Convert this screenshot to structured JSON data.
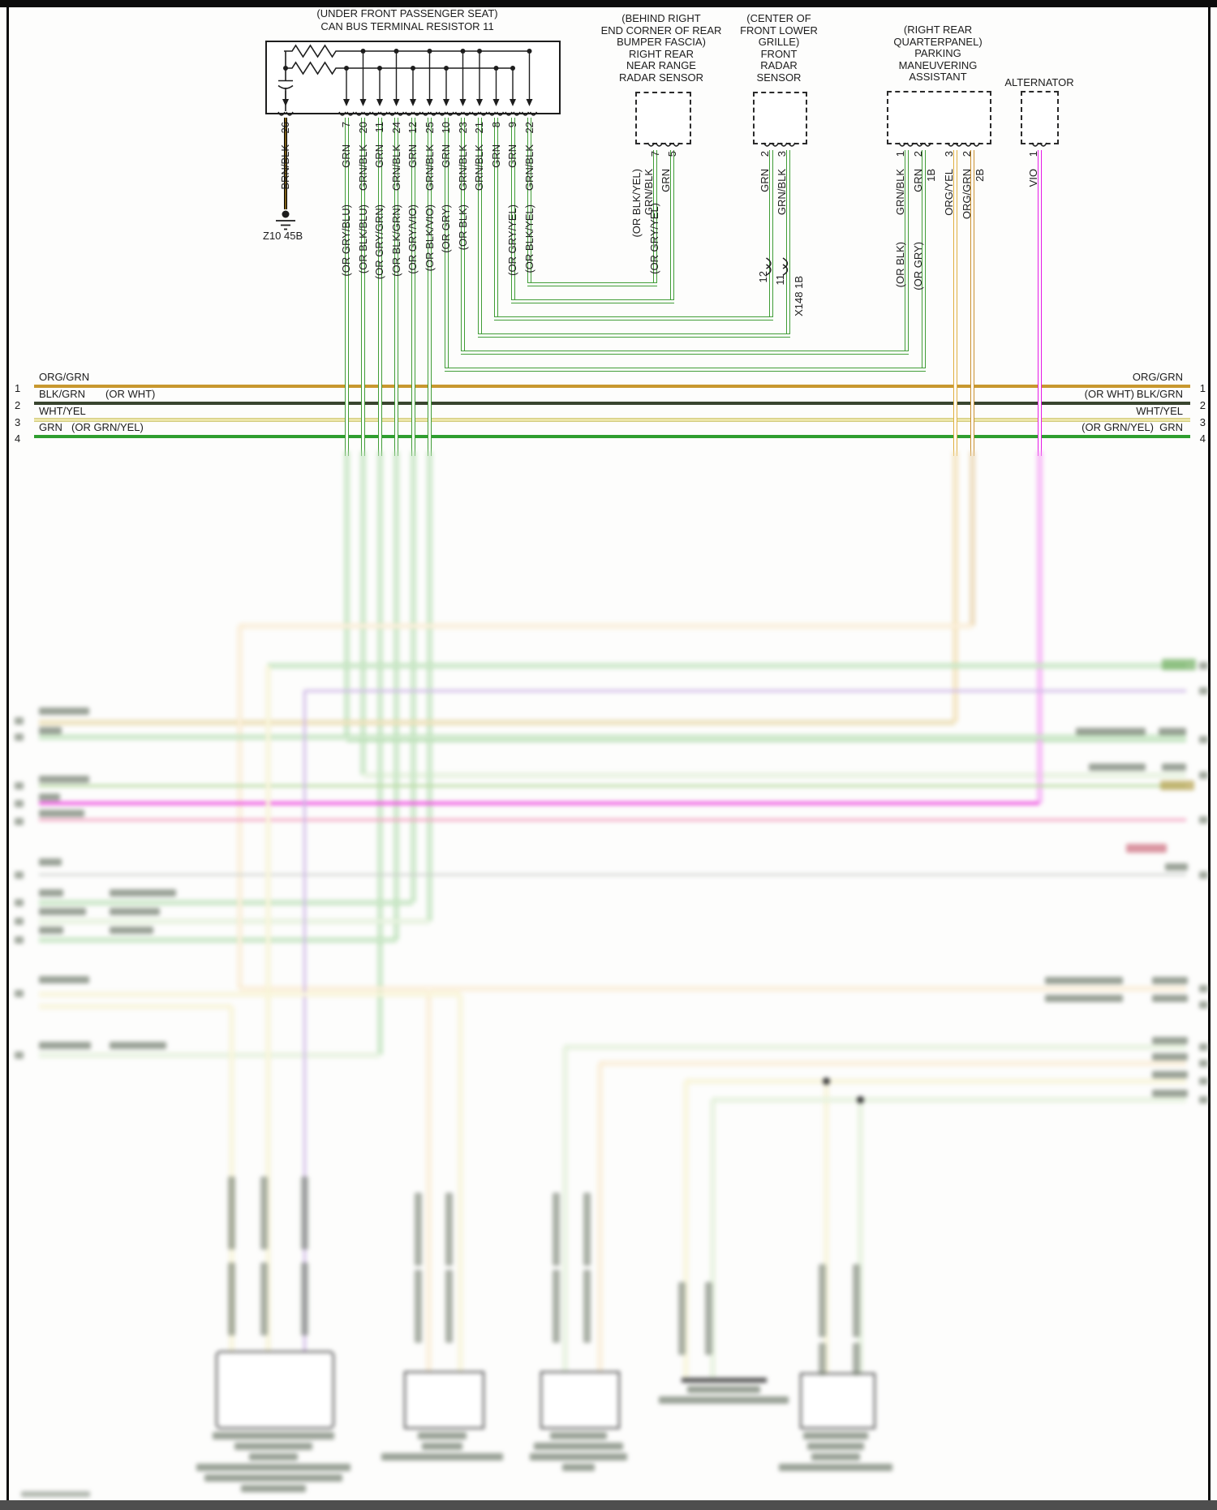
{
  "title": {
    "line1": "(UNDER FRONT PASSENGER SEAT)",
    "line2": "CAN BUS TERMINAL RESISTOR 11"
  },
  "ground": {
    "label": "Z10 45B"
  },
  "resistor_wires": [
    {
      "num": "26",
      "label": "BRN/BLK",
      "alt": ""
    },
    {
      "num": "7",
      "label": "GRN",
      "alt": "(OR GRY/BLU)"
    },
    {
      "num": "20",
      "label": "GRN/BLK",
      "alt": "(OR BLK/BLU)"
    },
    {
      "num": "11",
      "label": "GRN",
      "alt": "(OR GRY/GRN)"
    },
    {
      "num": "24",
      "label": "GRN/BLK",
      "alt": "(OR BLK/GRN)"
    },
    {
      "num": "12",
      "label": "GRN",
      "alt": "(OR GRY/VIO)"
    },
    {
      "num": "25",
      "label": "GRN/BLK",
      "alt": "(OR BLK/VIO)"
    },
    {
      "num": "10",
      "label": "GRN",
      "alt": "(OR GRY)"
    },
    {
      "num": "23",
      "label": "GRN/BLK",
      "alt": "(OR BLK)"
    },
    {
      "num": "21",
      "label": "GRN/BLK",
      "alt": ""
    },
    {
      "num": "8",
      "label": "GRN",
      "alt": ""
    },
    {
      "num": "9",
      "label": "GRN",
      "alt": "(OR GRY/YEL)"
    },
    {
      "num": "22",
      "label": "GRN/BLK",
      "alt": "(OR BLK/YEL)"
    }
  ],
  "rear_radar": {
    "header_lines": [
      "(BEHIND RIGHT",
      "END CORNER OF REAR",
      "BUMPER FASCIA)",
      "RIGHT REAR",
      "NEAR RANGE",
      "RADAR SENSOR"
    ],
    "pins": [
      {
        "num": "7",
        "label": "GRN/BLK",
        "alt": "(OR BLK/YEL)"
      },
      {
        "num": "5",
        "label": "GRN",
        "alt": "(OR GRY/YEL)"
      }
    ]
  },
  "front_radar": {
    "header_lines": [
      "(CENTER OF",
      "FRONT LOWER",
      "GRILLE)",
      "FRONT",
      "RADAR",
      "SENSOR"
    ],
    "pins": [
      {
        "num": "2",
        "label": "GRN"
      },
      {
        "num": "3",
        "label": "GRN/BLK"
      }
    ],
    "inline_connector": {
      "pin_left": "12",
      "pin_right": "11",
      "id": "X148 1B"
    }
  },
  "parking_assistant": {
    "header_lines": [
      "(RIGHT REAR",
      "QUARTERPANEL)",
      "PARKING",
      "MANEUVERING",
      "ASSISTANT"
    ],
    "pins": [
      {
        "num": "1",
        "sub": "",
        "label": "GRN/BLK",
        "alt": "(OR BLK)"
      },
      {
        "num": "2",
        "sub": "1B",
        "label": "GRN",
        "alt": "(OR GRY)"
      },
      {
        "num": "3",
        "sub": "",
        "label": "ORG/YEL",
        "alt": ""
      },
      {
        "num": "2",
        "sub": "2B",
        "label": "ORG/GRN",
        "alt": ""
      }
    ]
  },
  "alternator": {
    "header_lines": [
      "ALTERNATOR"
    ],
    "pins": [
      {
        "num": "1",
        "label": "VIO"
      }
    ]
  },
  "bus_lines": [
    {
      "num": "1",
      "left_label": "ORG/GRN",
      "left_alt": "",
      "right_alt": "",
      "right_label": "ORG/GRN"
    },
    {
      "num": "2",
      "left_label": "BLK/GRN",
      "left_alt": "(OR WHT)",
      "right_alt": "(OR WHT)",
      "right_label": "BLK/GRN"
    },
    {
      "num": "3",
      "left_label": "WHT/YEL",
      "left_alt": "",
      "right_alt": "",
      "right_label": "WHT/YEL"
    },
    {
      "num": "4",
      "left_label": "GRN",
      "left_alt": "(OR GRN/YEL)",
      "right_alt": "(OR GRN/YEL)",
      "right_label": "GRN"
    }
  ],
  "colors": {
    "green_wire": "#3f9c35",
    "brown_wire": "#7a5c16",
    "org_yel_wire": "#dfae3e",
    "org_grn_wire": "#c98f2c",
    "vio_wire": "#e519e5",
    "bus_org_grn": "#c8982f",
    "bus_blk_grn": "#39452f",
    "bus_wht_yel": "#ece5a8",
    "bus_grn": "#2f9e2f",
    "blur_pale_orange": "#f2cd8d",
    "blur_pale_yellow": "#ece293",
    "blur_olive": "#c9a22c",
    "blur_green": "#58b34e",
    "blur_pale_green": "#b5d89e",
    "blur_magenta": "#ee4fe0",
    "blur_pink": "#f2a0c0",
    "blur_lavender": "#cdb6e6",
    "blur_gray": "#c2c6c2"
  }
}
